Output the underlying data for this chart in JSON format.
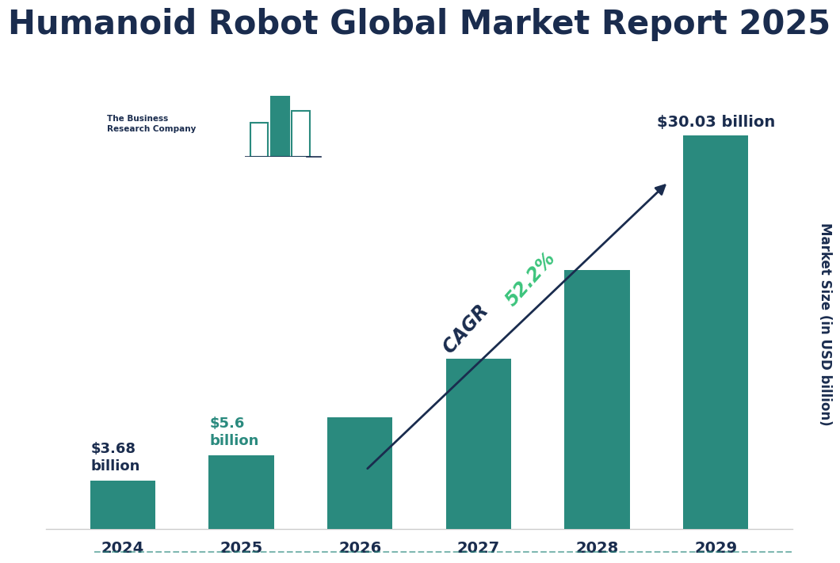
{
  "title": "Humanoid Robot Global Market Report 2025",
  "years": [
    "2024",
    "2025",
    "2026",
    "2027",
    "2028",
    "2029"
  ],
  "values": [
    3.68,
    5.6,
    8.53,
    13.0,
    19.8,
    30.03
  ],
  "bar_color": "#2a8a7e",
  "title_color": "#1a2c4e",
  "ylabel": "Market Size (in USD billion)",
  "ylabel_color": "#1a2c4e",
  "tick_color": "#1a2c4e",
  "background_color": "#ffffff",
  "ann_2024_text": "$3.68\nbillion",
  "ann_2024_color": "#1a2c4e",
  "ann_2025_text": "$5.6\nbillion",
  "ann_2025_color": "#2a8a7e",
  "ann_2029_text": "$30.03 billion",
  "ann_2029_color": "#1a2c4e",
  "cagr_label": "CAGR ",
  "cagr_pct": "52.2%",
  "cagr_color": "#1a2c4e",
  "cagr_pct_color": "#3cc47c",
  "arrow_color": "#1a2c4e",
  "ylim": [
    0,
    36
  ],
  "title_fontsize": 30,
  "axis_fontsize": 14,
  "bar_width": 0.55,
  "bottom_line_color": "#2a8a7e",
  "logo_text_color": "#1a2c4e",
  "logo_bar_color": "#2a8a7e"
}
